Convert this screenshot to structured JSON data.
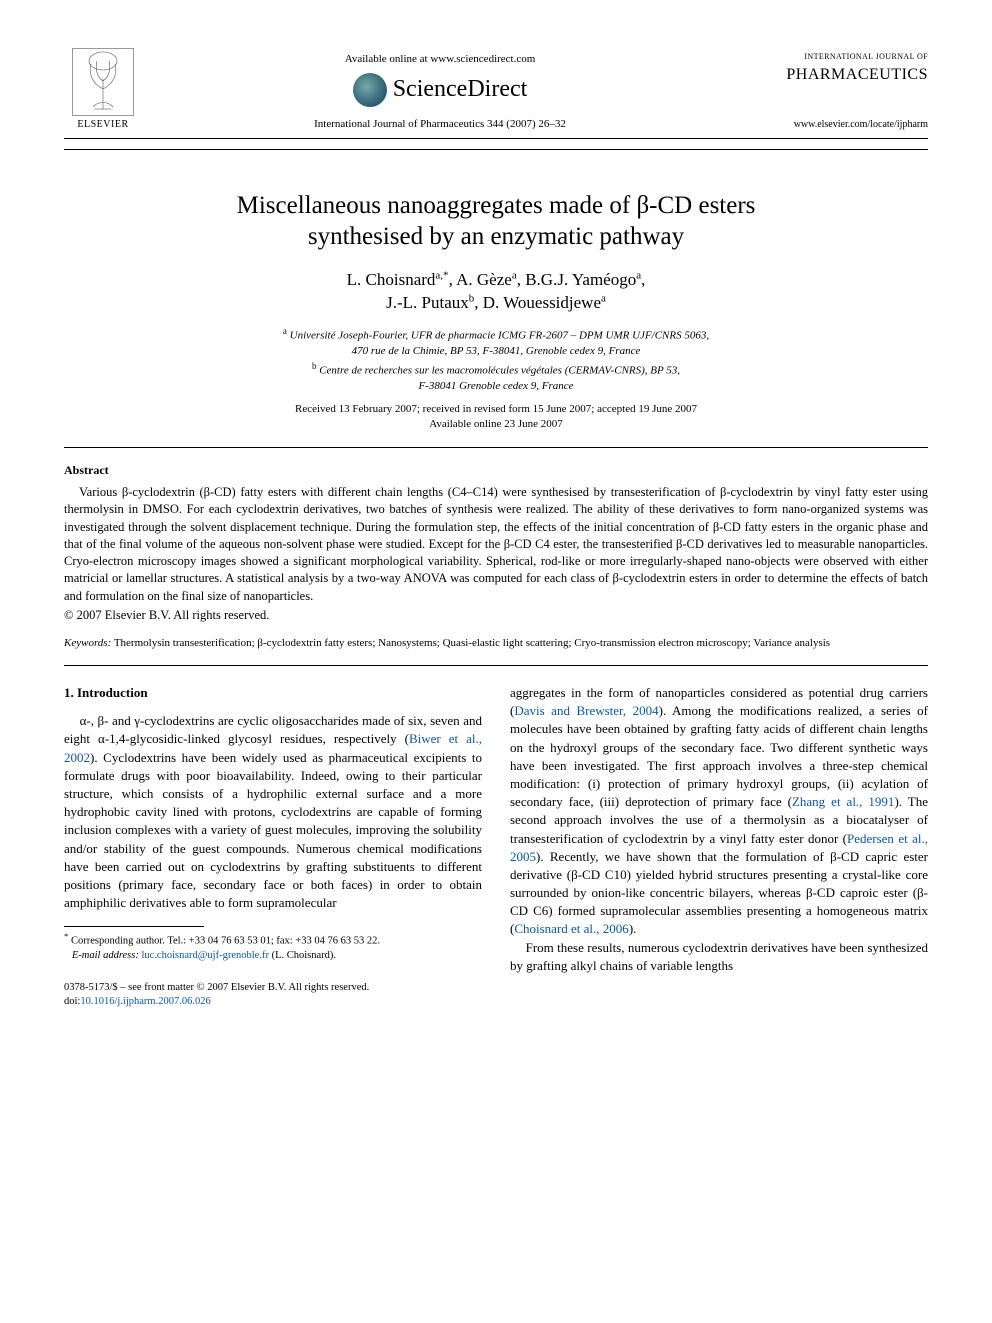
{
  "header": {
    "publisher_label": "ELSEVIER",
    "available_line": "Available online at www.sciencedirect.com",
    "platform_name": "ScienceDirect",
    "journal_ref": "International Journal of Pharmaceutics 344 (2007) 26–32",
    "journal_name_small": "INTERNATIONAL JOURNAL OF",
    "journal_name_big": "PHARMACEUTICS",
    "journal_url": "www.elsevier.com/locate/ijpharm"
  },
  "title_lines": {
    "l1": "Miscellaneous nanoaggregates made of β-CD esters",
    "l2": "synthesised by an enzymatic pathway"
  },
  "authors": {
    "line1_html": "L. Choisnard<sup>a,*</sup>, A. Gèze<sup>a</sup>, B.G.J. Yaméogo<sup>a</sup>,",
    "line2_html": "J.-L. Putaux<sup>b</sup>, D. Wouessidjewe<sup>a</sup>"
  },
  "affiliations": {
    "a1_sup": "a",
    "a1_l1": "Université Joseph-Fourier, UFR de pharmacie ICMG FR-2607 – DPM UMR UJF/CNRS 5063,",
    "a1_l2": "470 rue de la Chimie, BP 53, F-38041, Grenoble cedex 9, France",
    "a2_sup": "b",
    "a2_l1": "Centre de recherches sur les macromolécules végétales (CERMAV-CNRS), BP 53,",
    "a2_l2": "F-38041 Grenoble cedex 9, France"
  },
  "dates": {
    "l1": "Received 13 February 2007; received in revised form 15 June 2007; accepted 19 June 2007",
    "l2": "Available online 23 June 2007"
  },
  "abstract": {
    "heading": "Abstract",
    "body": "Various β-cyclodextrin (β-CD) fatty esters with different chain lengths (C4–C14) were synthesised by transesterification of β-cyclodextrin by vinyl fatty ester using thermolysin in DMSO. For each cyclodextrin derivatives, two batches of synthesis were realized. The ability of these derivatives to form nano-organized systems was investigated through the solvent displacement technique. During the formulation step, the effects of the initial concentration of β-CD fatty esters in the organic phase and that of the final volume of the aqueous non-solvent phase were studied. Except for the β-CD C4 ester, the transesterified β-CD derivatives led to measurable nanoparticles. Cryo-electron microscopy images showed a significant morphological variability. Spherical, rod-like or more irregularly-shaped nano-objects were observed with either matricial or lamellar structures. A statistical analysis by a two-way ANOVA was computed for each class of β-cyclodextrin esters in order to determine the effects of batch and formulation on the final size of nanoparticles.",
    "copyright": "© 2007 Elsevier B.V. All rights reserved."
  },
  "keywords": {
    "label": "Keywords:",
    "text": "Thermolysin transesterification; β-cyclodextrin fatty esters; Nanosystems; Quasi-elastic light scattering; Cryo-transmission electron microscopy; Variance analysis"
  },
  "section": {
    "heading": "1.  Introduction"
  },
  "col_left": {
    "p1_a": "α-, β- and γ-cyclodextrins are cyclic oligosaccharides made of six, seven and eight α-1,4-glycosidic-linked glycosyl residues, respectively (",
    "p1_cite1": "Biwer et al., 2002",
    "p1_b": "). Cyclodextrins have been widely used as pharmaceutical excipients to formulate drugs with poor bioavailability. Indeed, owing to their particular structure, which consists of a hydrophilic external surface and a more hydrophobic cavity lined with protons, cyclodextrins are capable of forming inclusion complexes with a variety of guest molecules, improving the solubility and/or stability of the guest compounds. Numerous chemical modifications have been carried out on cyclodextrins by grafting substituents to different positions (primary face, secondary face or both faces) in order to obtain amphiphilic derivatives able to form supramolecular"
  },
  "col_right": {
    "p1_a": "aggregates in the form of nanoparticles considered as potential drug carriers (",
    "p1_cite1": "Davis and Brewster, 2004",
    "p1_b": "). Among the modifications realized, a series of molecules have been obtained by grafting fatty acids of different chain lengths on the hydroxyl groups of the secondary face. Two different synthetic ways have been investigated. The first approach involves a three-step chemical modification: (i) protection of primary hydroxyl groups, (ii) acylation of secondary face, (iii) deprotection of primary face (",
    "p1_cite2": "Zhang et al., 1991",
    "p1_c": "). The second approach involves the use of a thermolysin as a biocatalyser of transesterification of cyclodextrin by a vinyl fatty ester donor (",
    "p1_cite3": "Pedersen et al., 2005",
    "p1_d": "). Recently, we have shown that the formulation of β-CD capric ester derivative (β-CD C10) yielded hybrid structures presenting a crystal-like core surrounded by onion-like concentric bilayers, whereas β-CD caproic ester (β-CD C6) formed supramolecular assemblies presenting a homogeneous matrix (",
    "p1_cite4": "Choisnard et al., 2006",
    "p1_e": ").",
    "p2": "From these results, numerous cyclodextrin derivatives have been synthesized by grafting alkyl chains of variable lengths"
  },
  "footnote": {
    "star": "*",
    "text_a": "Corresponding author. Tel.: +33 04 76 63 53 01; fax: +33 04 76 63 53 22.",
    "email_label": "E-mail address:",
    "email": "luc.choisnard@ujf-grenoble.fr",
    "email_suffix": "(L. Choisnard)."
  },
  "bottom": {
    "line1": "0378-5173/$ – see front matter © 2007 Elsevier B.V. All rights reserved.",
    "line2_a": "doi:",
    "line2_b": "10.1016/j.ijpharm.2007.06.026"
  },
  "colors": {
    "link": "#0a57a4",
    "text": "#000000",
    "background": "#ffffff"
  }
}
